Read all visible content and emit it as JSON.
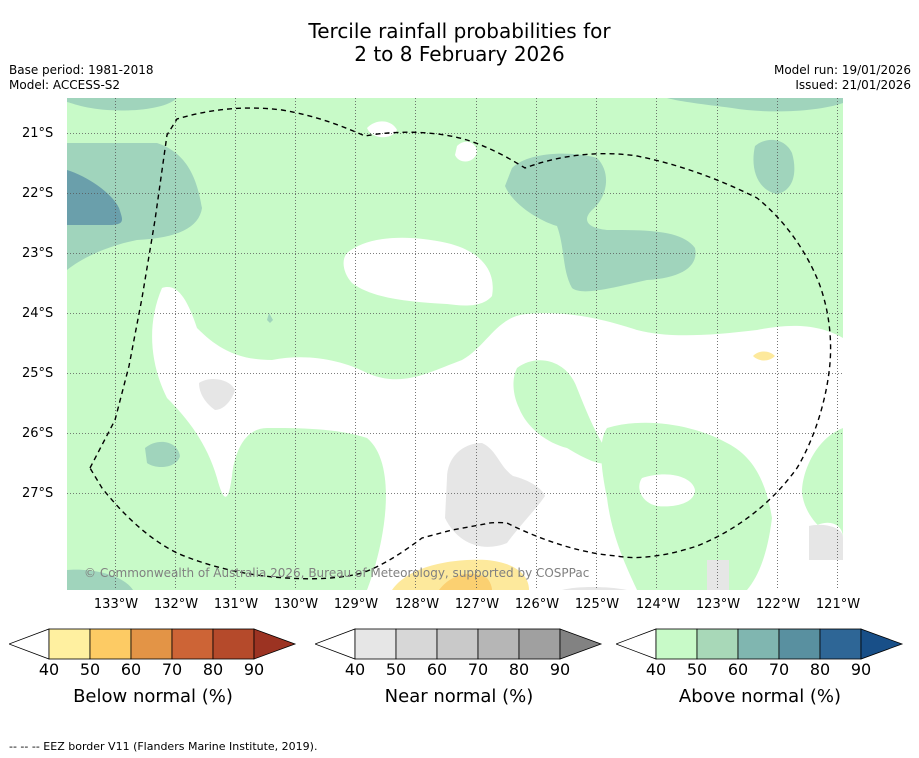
{
  "title": {
    "line1": "Tercile rainfall probabilities for",
    "line2": "2 to 8 February 2026"
  },
  "meta": {
    "base_period": "Base period: 1981-2018",
    "model": "Model: ACCESS-S2",
    "model_run": "Model run: 19/01/2026",
    "issued": "Issued: 21/01/2026"
  },
  "map": {
    "lat_ticks": [
      "21°S",
      "22°S",
      "23°S",
      "24°S",
      "25°S",
      "26°S",
      "27°S"
    ],
    "lon_ticks": [
      "133°W",
      "132°W",
      "131°W",
      "130°W",
      "129°W",
      "128°W",
      "127°W",
      "126°W",
      "125°W",
      "124°W",
      "123°W",
      "122°W",
      "121°W"
    ],
    "copyright": "© Commonwealth of Australia 2026, Bureau of Meteorology, supported by COSPPac",
    "colors": {
      "above_40": "#c8fac8",
      "above_50": "#a0d4bc",
      "above_60": "#80b8b0",
      "above_70": "#6a9fab",
      "near_40": "#e6e6e6",
      "below_40": "#fde99c",
      "below_50": "#fbd071"
    }
  },
  "colorbars": [
    {
      "label": "Below normal (%)",
      "ticks": [
        "40",
        "50",
        "60",
        "70",
        "80",
        "90"
      ],
      "colors": [
        "#ffffff",
        "#fff0a0",
        "#fdcb64",
        "#e39446",
        "#cd6436",
        "#b54a2b",
        "#9c3322"
      ]
    },
    {
      "label": "Near normal (%)",
      "ticks": [
        "40",
        "50",
        "60",
        "70",
        "80",
        "90"
      ],
      "colors": [
        "#ffffff",
        "#e6e6e6",
        "#d7d7d7",
        "#c9c9c9",
        "#b6b6b6",
        "#a0a0a0",
        "#828282"
      ]
    },
    {
      "label": "Above normal (%)",
      "ticks": [
        "40",
        "50",
        "60",
        "70",
        "80",
        "90"
      ],
      "colors": [
        "#ffffff",
        "#c8fac8",
        "#a8d8b8",
        "#80b6b0",
        "#5990a0",
        "#2e6696",
        "#184f88"
      ]
    }
  ],
  "footer": "--  --  -- EEZ border V11 (Flanders Marine Institute, 2019)."
}
